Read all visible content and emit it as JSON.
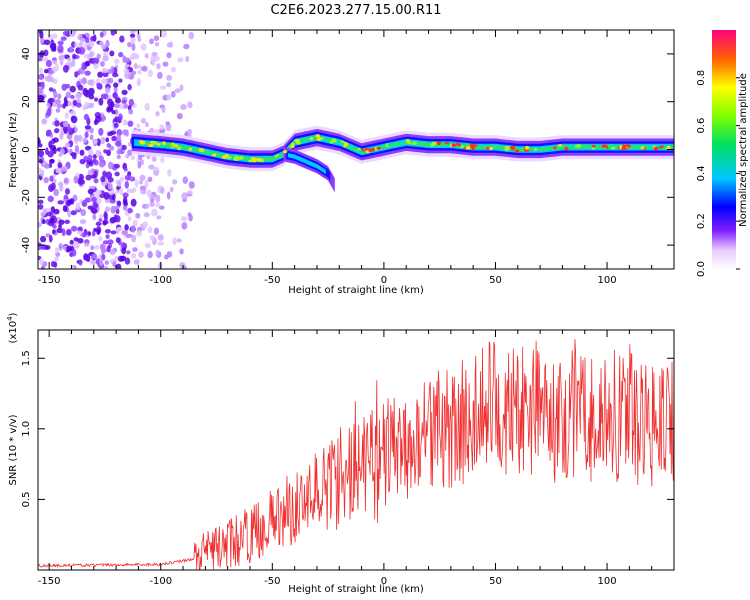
{
  "title": "C2E6.2023.277.15.00.R11",
  "chart_data": [
    {
      "type": "heatmap",
      "title": "C2E6.2023.277.15.00.R11",
      "xlabel": "Height of straight line (km)",
      "ylabel": "Frequency (Hz)",
      "xlim": [
        -155,
        130
      ],
      "ylim": [
        -50,
        50
      ],
      "x_ticks": [
        -150,
        -100,
        -50,
        0,
        50,
        100
      ],
      "y_ticks": [
        -40,
        -20,
        0,
        20,
        40
      ],
      "colorbar": {
        "label": "Normalized spectral amplitude",
        "range": [
          0,
          1
        ],
        "ticks": [
          "0.0",
          "0.2",
          "0.4",
          "0.6",
          "0.8"
        ]
      },
      "ridge": {
        "x": [
          -113,
          -100,
          -90,
          -80,
          -70,
          -60,
          -50,
          -45,
          -40,
          -30,
          -20,
          -10,
          0,
          10,
          20,
          30,
          40,
          50,
          60,
          70,
          80,
          90,
          100,
          110,
          120,
          130
        ],
        "y": [
          3,
          2,
          1,
          -1,
          -3,
          -4,
          -4,
          -2,
          3,
          5,
          3,
          -1,
          1,
          3,
          2,
          2,
          1,
          1,
          0,
          0,
          1,
          1,
          1,
          1,
          1,
          1
        ]
      },
      "branch": {
        "x": [
          -45,
          -40,
          -35,
          -30,
          -25,
          -22
        ],
        "y": [
          -2,
          -3,
          -5,
          -7,
          -10,
          -15
        ]
      }
    },
    {
      "type": "line",
      "xlabel": "Height of straight line (km)",
      "ylabel": "SNR (10 * v/v)",
      "exponent_label": "(x10",
      "exponent_power": "4",
      "xlim": [
        -155,
        130
      ],
      "ylim": [
        0,
        1.7
      ],
      "x_ticks": [
        -150,
        -100,
        -50,
        0,
        50,
        100
      ],
      "y_ticks": [
        0.5,
        1.0,
        1.5
      ],
      "envelope": {
        "x": [
          -155,
          -100,
          -85,
          -75,
          -60,
          -50,
          -40,
          -30,
          -20,
          -10,
          0,
          10,
          20,
          30,
          40,
          50,
          60,
          70,
          80,
          90,
          100,
          110,
          120,
          130
        ],
        "y": [
          0.03,
          0.04,
          0.08,
          0.15,
          0.25,
          0.35,
          0.45,
          0.55,
          0.65,
          0.75,
          0.82,
          0.88,
          0.95,
          1.02,
          1.1,
          1.15,
          1.13,
          1.12,
          1.15,
          1.08,
          1.05,
          1.08,
          1.0,
          1.05
        ]
      },
      "color": "#f03030"
    }
  ]
}
